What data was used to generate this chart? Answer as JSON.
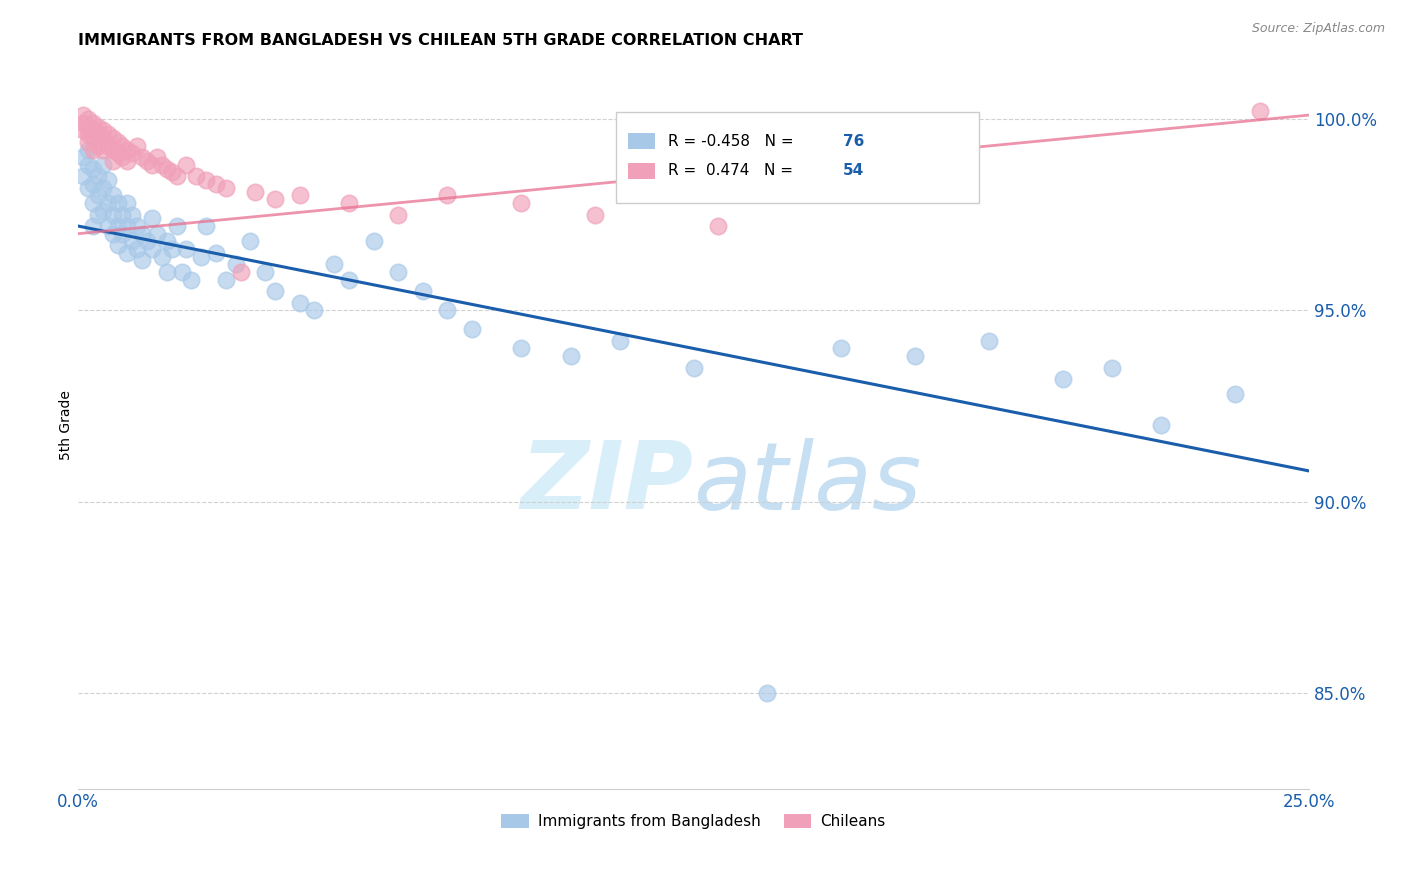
{
  "title": "IMMIGRANTS FROM BANGLADESH VS CHILEAN 5TH GRADE CORRELATION CHART",
  "source": "Source: ZipAtlas.com",
  "ylabel": "5th Grade",
  "yticks": [
    0.85,
    0.9,
    0.95,
    1.0
  ],
  "xlim": [
    0.0,
    0.25
  ],
  "ylim": [
    0.825,
    1.015
  ],
  "legend_blue_label": "Immigrants from Bangladesh",
  "legend_pink_label": "Chileans",
  "blue_color": "#A8C8E8",
  "pink_color": "#F0A0B8",
  "blue_line_color": "#1A5DAB",
  "pink_line_color": "#E87090",
  "watermark_color": "#D8EEF8",
  "blue_line_x0": 0.0,
  "blue_line_y0": 0.972,
  "blue_line_x1": 0.25,
  "blue_line_y1": 0.908,
  "pink_line_x0": 0.0,
  "pink_line_y0": 0.97,
  "pink_line_x1": 0.25,
  "pink_line_y1": 1.001,
  "blue_x": [
    0.001,
    0.001,
    0.002,
    0.002,
    0.002,
    0.003,
    0.003,
    0.003,
    0.003,
    0.004,
    0.004,
    0.004,
    0.005,
    0.005,
    0.005,
    0.006,
    0.006,
    0.006,
    0.007,
    0.007,
    0.007,
    0.008,
    0.008,
    0.008,
    0.009,
    0.009,
    0.01,
    0.01,
    0.01,
    0.011,
    0.011,
    0.012,
    0.012,
    0.013,
    0.013,
    0.014,
    0.015,
    0.015,
    0.016,
    0.017,
    0.018,
    0.018,
    0.019,
    0.02,
    0.021,
    0.022,
    0.023,
    0.025,
    0.026,
    0.028,
    0.03,
    0.032,
    0.035,
    0.038,
    0.04,
    0.045,
    0.048,
    0.052,
    0.055,
    0.06,
    0.065,
    0.07,
    0.075,
    0.08,
    0.09,
    0.1,
    0.11,
    0.125,
    0.14,
    0.155,
    0.17,
    0.185,
    0.2,
    0.21,
    0.22,
    0.235
  ],
  "blue_y": [
    0.99,
    0.985,
    0.992,
    0.988,
    0.982,
    0.987,
    0.983,
    0.978,
    0.972,
    0.985,
    0.98,
    0.975,
    0.988,
    0.982,
    0.976,
    0.984,
    0.978,
    0.972,
    0.98,
    0.975,
    0.97,
    0.978,
    0.972,
    0.967,
    0.975,
    0.97,
    0.978,
    0.972,
    0.965,
    0.975,
    0.968,
    0.972,
    0.966,
    0.97,
    0.963,
    0.968,
    0.974,
    0.966,
    0.97,
    0.964,
    0.968,
    0.96,
    0.966,
    0.972,
    0.96,
    0.966,
    0.958,
    0.964,
    0.972,
    0.965,
    0.958,
    0.962,
    0.968,
    0.96,
    0.955,
    0.952,
    0.95,
    0.962,
    0.958,
    0.968,
    0.96,
    0.955,
    0.95,
    0.945,
    0.94,
    0.938,
    0.942,
    0.935,
    0.85,
    0.94,
    0.938,
    0.942,
    0.932,
    0.935,
    0.92,
    0.928
  ],
  "pink_x": [
    0.001,
    0.001,
    0.001,
    0.002,
    0.002,
    0.002,
    0.002,
    0.003,
    0.003,
    0.003,
    0.003,
    0.004,
    0.004,
    0.004,
    0.005,
    0.005,
    0.005,
    0.006,
    0.006,
    0.007,
    0.007,
    0.007,
    0.008,
    0.008,
    0.009,
    0.009,
    0.01,
    0.01,
    0.011,
    0.012,
    0.013,
    0.014,
    0.015,
    0.016,
    0.017,
    0.018,
    0.019,
    0.02,
    0.022,
    0.024,
    0.026,
    0.028,
    0.03,
    0.033,
    0.036,
    0.04,
    0.045,
    0.055,
    0.065,
    0.075,
    0.09,
    0.105,
    0.13,
    0.24
  ],
  "pink_y": [
    1.001,
    0.999,
    0.997,
    1.0,
    0.998,
    0.996,
    0.994,
    0.999,
    0.997,
    0.995,
    0.992,
    0.998,
    0.996,
    0.993,
    0.997,
    0.995,
    0.992,
    0.996,
    0.993,
    0.995,
    0.992,
    0.989,
    0.994,
    0.991,
    0.993,
    0.99,
    0.992,
    0.989,
    0.991,
    0.993,
    0.99,
    0.989,
    0.988,
    0.99,
    0.988,
    0.987,
    0.986,
    0.985,
    0.988,
    0.985,
    0.984,
    0.983,
    0.982,
    0.96,
    0.981,
    0.979,
    0.98,
    0.978,
    0.975,
    0.98,
    0.978,
    0.975,
    0.972,
    1.002
  ]
}
